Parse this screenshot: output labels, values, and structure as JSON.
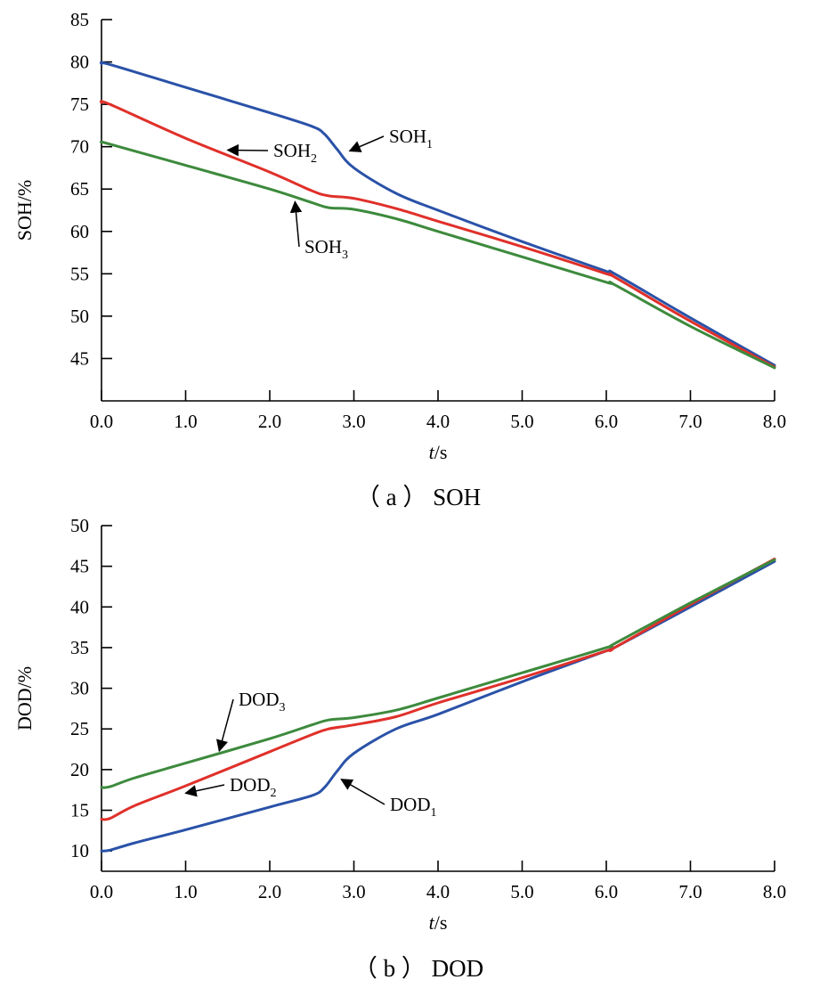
{
  "colors": {
    "series1": "#2a52a8",
    "series2": "#e0302a",
    "series3": "#3d8a3d",
    "axis": "#000000"
  },
  "chart_data": [
    {
      "type": "line",
      "caption_prefix": "（ a ）",
      "caption": "SOH",
      "xlabel_italic": "t",
      "xlabel_unit": "/s",
      "ylabel": "SOH/%",
      "xlim": [
        0,
        8
      ],
      "ylim": [
        40,
        85
      ],
      "xticks": [
        "0.0",
        "1.0",
        "2.0",
        "3.0",
        "4.0",
        "5.0",
        "6.0",
        "7.0",
        "8.0"
      ],
      "yticks": [
        "45",
        "50",
        "55",
        "60",
        "65",
        "70",
        "75",
        "80",
        "85"
      ],
      "series": [
        {
          "name": "SOH",
          "sub": "1",
          "color": "#2a52a8",
          "x": [
            0,
            0.1,
            1.0,
            2.0,
            2.5,
            2.65,
            2.8,
            3.0,
            3.5,
            4.0,
            5.0,
            6.0,
            6.1,
            7.0,
            8.0
          ],
          "y": [
            79.8,
            79.7,
            77.0,
            74.0,
            72.4,
            71.5,
            69.7,
            67.5,
            64.5,
            62.5,
            58.8,
            55.3,
            55.0,
            49.8,
            44.2
          ]
        },
        {
          "name": "SOH",
          "sub": "2",
          "color": "#e0302a",
          "x": [
            0,
            0.1,
            1.0,
            2.0,
            2.5,
            2.7,
            3.0,
            3.5,
            4.0,
            5.0,
            6.0,
            6.1,
            7.0,
            8.0
          ],
          "y": [
            75.2,
            75.0,
            71.0,
            67.0,
            64.8,
            64.2,
            63.9,
            62.7,
            61.2,
            58.2,
            55.0,
            54.6,
            49.4,
            44.0
          ]
        },
        {
          "name": "SOH",
          "sub": "3",
          "color": "#3d8a3d",
          "x": [
            0,
            0.1,
            1.0,
            2.0,
            2.5,
            2.7,
            3.0,
            3.5,
            4.0,
            5.0,
            6.0,
            6.1,
            7.0,
            8.0
          ],
          "y": [
            70.5,
            70.3,
            67.8,
            65.0,
            63.4,
            62.8,
            62.6,
            61.5,
            60.0,
            57.0,
            54.0,
            53.7,
            48.8,
            43.9
          ]
        }
      ],
      "annotations": [
        {
          "label": "SOH",
          "sub": "1",
          "target": [
            2.95,
            69.5
          ]
        },
        {
          "label": "SOH",
          "sub": "2",
          "target": [
            1.5,
            69.6
          ]
        },
        {
          "label": "SOH",
          "sub": "3",
          "target": [
            2.3,
            63.5
          ]
        }
      ]
    },
    {
      "type": "line",
      "caption_prefix": "（ b ）",
      "caption": "DOD",
      "xlabel_italic": "t",
      "xlabel_unit": "/s",
      "ylabel": "DOD/%",
      "xlim": [
        0,
        8
      ],
      "ylim": [
        7.5,
        50
      ],
      "xticks": [
        "0.0",
        "1.0",
        "2.0",
        "3.0",
        "4.0",
        "5.0",
        "6.0",
        "7.0",
        "8.0"
      ],
      "yticks": [
        "10",
        "15",
        "20",
        "25",
        "30",
        "35",
        "40",
        "45",
        "50"
      ],
      "series": [
        {
          "name": "DOD",
          "sub": "1",
          "color": "#2a52a8",
          "x": [
            0,
            0.1,
            0.4,
            1.0,
            2.0,
            2.5,
            2.65,
            2.8,
            3.0,
            3.5,
            4.0,
            5.0,
            6.0,
            6.1,
            7.0,
            8.0
          ],
          "y": [
            10.0,
            10.1,
            11.0,
            12.6,
            15.4,
            16.8,
            17.8,
            19.8,
            22.0,
            25.0,
            26.8,
            30.8,
            34.6,
            35.0,
            40.0,
            45.6
          ]
        },
        {
          "name": "DOD",
          "sub": "2",
          "color": "#e0302a",
          "x": [
            0,
            0.1,
            0.4,
            1.0,
            2.0,
            2.5,
            2.7,
            3.0,
            3.5,
            4.0,
            5.0,
            6.0,
            6.1,
            7.0,
            8.0
          ],
          "y": [
            13.9,
            14.0,
            15.6,
            18.0,
            22.2,
            24.3,
            25.0,
            25.5,
            26.5,
            28.2,
            31.3,
            34.6,
            35.0,
            40.3,
            45.9
          ]
        },
        {
          "name": "DOD",
          "sub": "3",
          "color": "#3d8a3d",
          "x": [
            0,
            0.1,
            0.4,
            1.0,
            2.0,
            2.5,
            2.7,
            3.0,
            3.5,
            4.0,
            5.0,
            6.0,
            6.1,
            7.0,
            8.0
          ],
          "y": [
            17.8,
            17.9,
            19.0,
            20.8,
            23.8,
            25.5,
            26.1,
            26.4,
            27.3,
            28.8,
            31.9,
            35.0,
            35.5,
            40.5,
            45.8
          ]
        }
      ],
      "annotations": [
        {
          "label": "DOD",
          "sub": "1",
          "target": [
            2.85,
            18.8
          ]
        },
        {
          "label": "DOD",
          "sub": "2",
          "target": [
            1.0,
            17.1
          ]
        },
        {
          "label": "DOD",
          "sub": "3",
          "target": [
            1.4,
            22.3
          ]
        }
      ]
    }
  ]
}
